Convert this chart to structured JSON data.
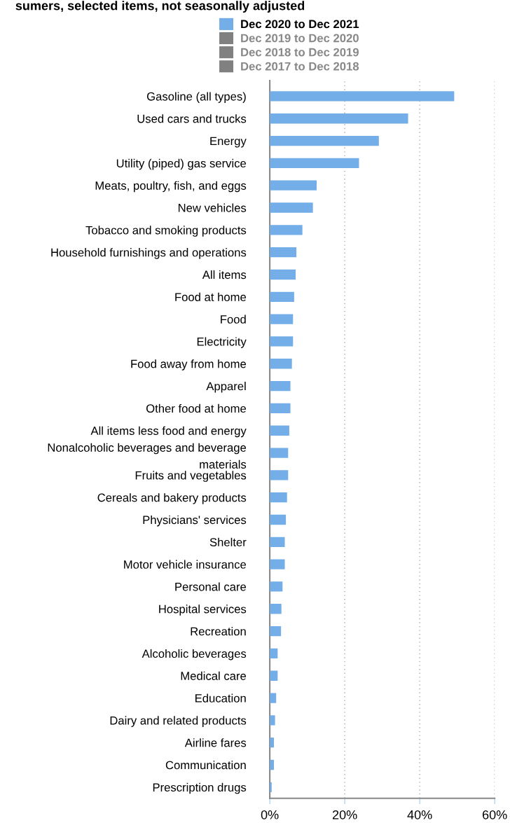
{
  "chart_data": {
    "type": "bar",
    "orientation": "horizontal",
    "title": "sumers, selected items, not seasonally adjusted",
    "categories": [
      "Gasoline (all types)",
      "Used cars and trucks",
      "Energy",
      "Utility (piped) gas service",
      "Meats, poultry, fish, and eggs",
      "New vehicles",
      "Tobacco and smoking products",
      "Household furnishings and operations",
      "All items",
      "Food at home",
      "Food",
      "Electricity",
      "Food away from home",
      "Apparel",
      "Other food at home",
      "All items less food and energy",
      "Nonalcoholic beverages and beverage\nmaterials",
      "Fruits and vegetables",
      "Cereals and bakery products",
      "Physicians' services",
      "Shelter",
      "Motor vehicle insurance",
      "Personal care",
      "Hospital services",
      "Recreation",
      "Alcoholic beverages",
      "Medical care",
      "Education",
      "Dairy and related products",
      "Airline fares",
      "Communication",
      "Prescription drugs"
    ],
    "series": [
      {
        "name": "Dec 2020 to Dec 2021",
        "color": "#74aee8",
        "values": [
          49.2,
          36.9,
          29.1,
          23.8,
          12.5,
          11.5,
          8.7,
          7.1,
          6.9,
          6.5,
          6.2,
          6.2,
          5.9,
          5.5,
          5.5,
          5.2,
          4.9,
          4.9,
          4.6,
          4.3,
          4.0,
          4.0,
          3.4,
          3.1,
          3.0,
          2.1,
          2.1,
          1.7,
          1.4,
          1.1,
          1.1,
          0.5
        ]
      },
      {
        "name": "Dec 2019 to Dec 2020",
        "color": "#808080",
        "values": [
          null,
          null,
          null,
          null,
          null,
          null,
          null,
          null,
          null,
          null,
          null,
          null,
          null,
          null,
          null,
          null,
          null,
          null,
          null,
          null,
          null,
          null,
          null,
          null,
          null,
          null,
          null,
          null,
          null,
          null,
          null,
          null
        ]
      },
      {
        "name": "Dec 2018 to Dec 2019",
        "color": "#808080",
        "values": [
          null,
          null,
          null,
          null,
          null,
          null,
          null,
          null,
          null,
          null,
          null,
          null,
          null,
          null,
          null,
          null,
          null,
          null,
          null,
          null,
          null,
          null,
          null,
          null,
          null,
          null,
          null,
          null,
          null,
          null,
          null,
          null
        ]
      },
      {
        "name": "Dec 2017 to Dec 2018",
        "color": "#808080",
        "values": [
          null,
          null,
          null,
          null,
          null,
          null,
          null,
          null,
          null,
          null,
          null,
          null,
          null,
          null,
          null,
          null,
          null,
          null,
          null,
          null,
          null,
          null,
          null,
          null,
          null,
          null,
          null,
          null,
          null,
          null,
          null,
          null
        ]
      }
    ],
    "xlim": [
      0,
      60
    ],
    "xticks": [
      {
        "value": 0,
        "label": "0%"
      },
      {
        "value": 20,
        "label": "20%"
      },
      {
        "value": 40,
        "label": "40%"
      },
      {
        "value": 60,
        "label": "60%"
      }
    ],
    "grid": "x",
    "legend": "top"
  }
}
